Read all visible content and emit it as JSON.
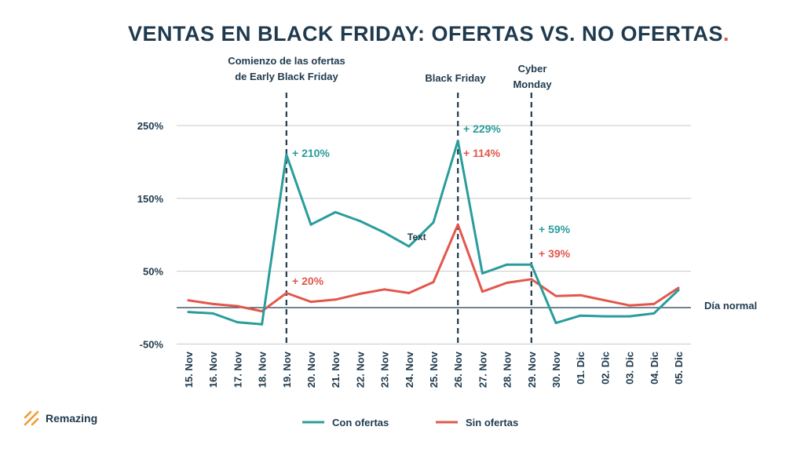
{
  "title_main": "VENTAS EN BLACK FRIDAY: OFERTAS VS. NO OFERTAS",
  "title_dot": ".",
  "brand": {
    "name": "Remazing"
  },
  "colors": {
    "con": "#2a9c9c",
    "sin": "#e2574c",
    "text": "#1f3a4d",
    "grid": "#c8c8c8"
  },
  "chart_data": {
    "type": "line",
    "title": "VENTAS EN BLACK FRIDAY: OFERTAS VS. NO OFERTAS",
    "categories": [
      "15. Nov",
      "16. Nov",
      "17. Nov",
      "18. Nov",
      "19. Nov",
      "20. Nov",
      "21. Nov",
      "22. Nov",
      "23. Nov",
      "24. Nov",
      "25. Nov",
      "26. Nov",
      "27. Nov",
      "28. Nov",
      "29. Nov",
      "30. Nov",
      "01. Dic",
      "02. Dic",
      "03. Dic",
      "04. Dic",
      "05. Dic"
    ],
    "series": [
      {
        "name": "Con ofertas",
        "color": "#2a9c9c",
        "values": [
          -6,
          -8,
          -20,
          -23,
          210,
          114,
          131,
          119,
          103,
          84,
          117,
          229,
          47,
          59,
          59,
          -21,
          -11,
          -12,
          -12,
          -8,
          24
        ]
      },
      {
        "name": "Sin ofertas",
        "color": "#e2574c",
        "values": [
          10,
          5,
          2,
          -5,
          20,
          8,
          11,
          19,
          25,
          20,
          35,
          114,
          22,
          34,
          39,
          16,
          17,
          10,
          3,
          5,
          27
        ]
      }
    ],
    "yticks": [
      -50,
      50,
      150,
      250
    ],
    "ytick_labels": [
      "-50%",
      "50%",
      "150%",
      "250%"
    ],
    "ylim": [
      -50,
      260
    ],
    "baseline": {
      "value": 0,
      "label": "Día normal"
    },
    "events": [
      {
        "index": 4,
        "lines": [
          "Comienzo de las ofertas",
          "de Early Black Friday"
        ]
      },
      {
        "index": 11,
        "lines": [
          "Black Friday"
        ]
      },
      {
        "index": 14,
        "lines": [
          "Cyber",
          "Monday"
        ]
      }
    ],
    "annotations": [
      {
        "index": 4,
        "series": 0,
        "text": "+ 210%"
      },
      {
        "index": 4,
        "series": 1,
        "text": "+ 20%"
      },
      {
        "index": 11,
        "series": 0,
        "text": "+ 229%"
      },
      {
        "index": 11,
        "series": 1,
        "text": "+ 114%"
      },
      {
        "index": 14,
        "series": 0,
        "text": "+ 59%"
      },
      {
        "index": 14,
        "series": 1,
        "text": "+ 39%"
      }
    ],
    "stray_labels": [
      {
        "index": 9,
        "text": "Text"
      }
    ],
    "legend": [
      {
        "name": "Con ofertas",
        "color": "#2a9c9c"
      },
      {
        "name": "Sin ofertas",
        "color": "#e2574c"
      }
    ],
    "legend_position": "bottom"
  }
}
